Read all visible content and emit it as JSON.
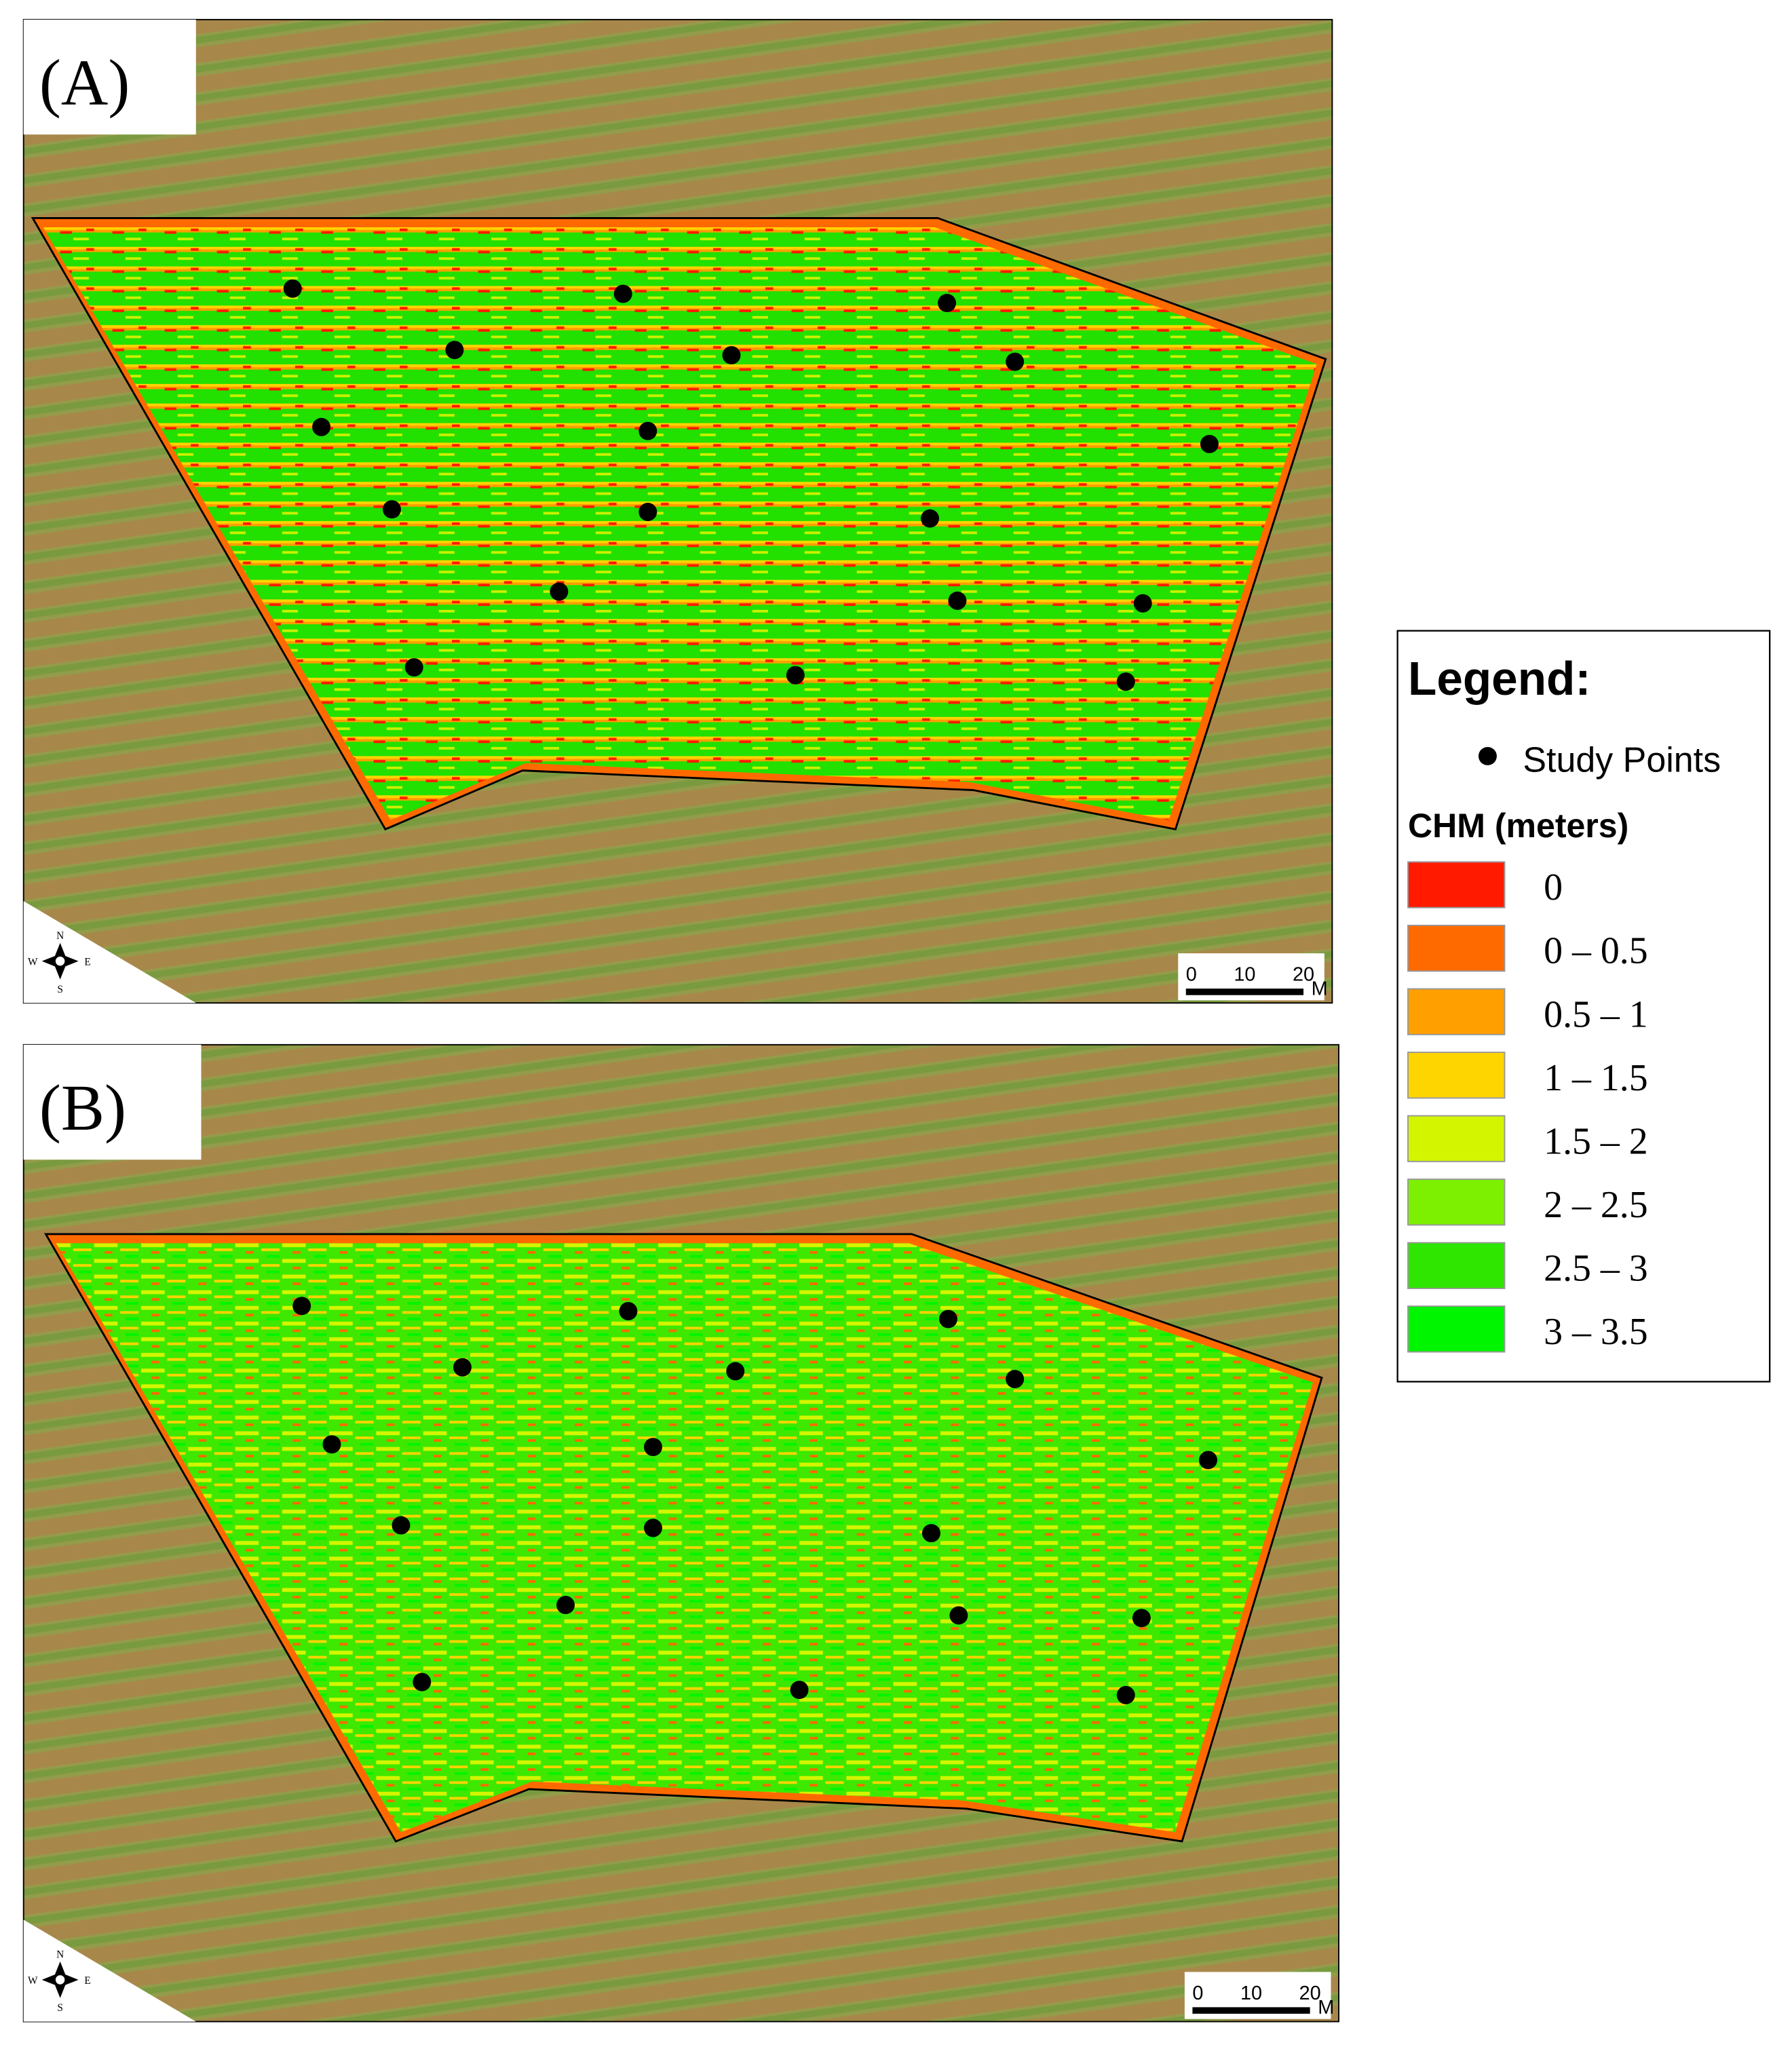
{
  "panels": [
    {
      "label": "(A)",
      "scale_bar": {
        "ticks": [
          "0",
          "10",
          "20"
        ],
        "unit": "M"
      },
      "compass": {
        "n": "N",
        "s": "S",
        "e": "E",
        "w": "W"
      }
    },
    {
      "label": "(B)",
      "scale_bar": {
        "ticks": [
          "0",
          "10",
          "20"
        ],
        "unit": "M"
      },
      "compass": {
        "n": "N",
        "s": "S",
        "e": "E",
        "w": "W"
      }
    }
  ],
  "legend": {
    "title": "Legend:",
    "points_label": "Study Points",
    "chm_title": "CHM (meters)",
    "classes": [
      {
        "label": "0",
        "color": "#ff1a00"
      },
      {
        "label": "0 – 0.5",
        "color": "#ff6a00"
      },
      {
        "label": "0.5 – 1",
        "color": "#ff9f00"
      },
      {
        "label": "1 – 1.5",
        "color": "#ffd500"
      },
      {
        "label": "1.5 – 2",
        "color": "#d4f500"
      },
      {
        "label": "2 – 2.5",
        "color": "#7cf000"
      },
      {
        "label": "2.5 – 3",
        "color": "#2ee600"
      },
      {
        "label": "3 – 3.5",
        "color": "#00f500"
      }
    ]
  }
}
